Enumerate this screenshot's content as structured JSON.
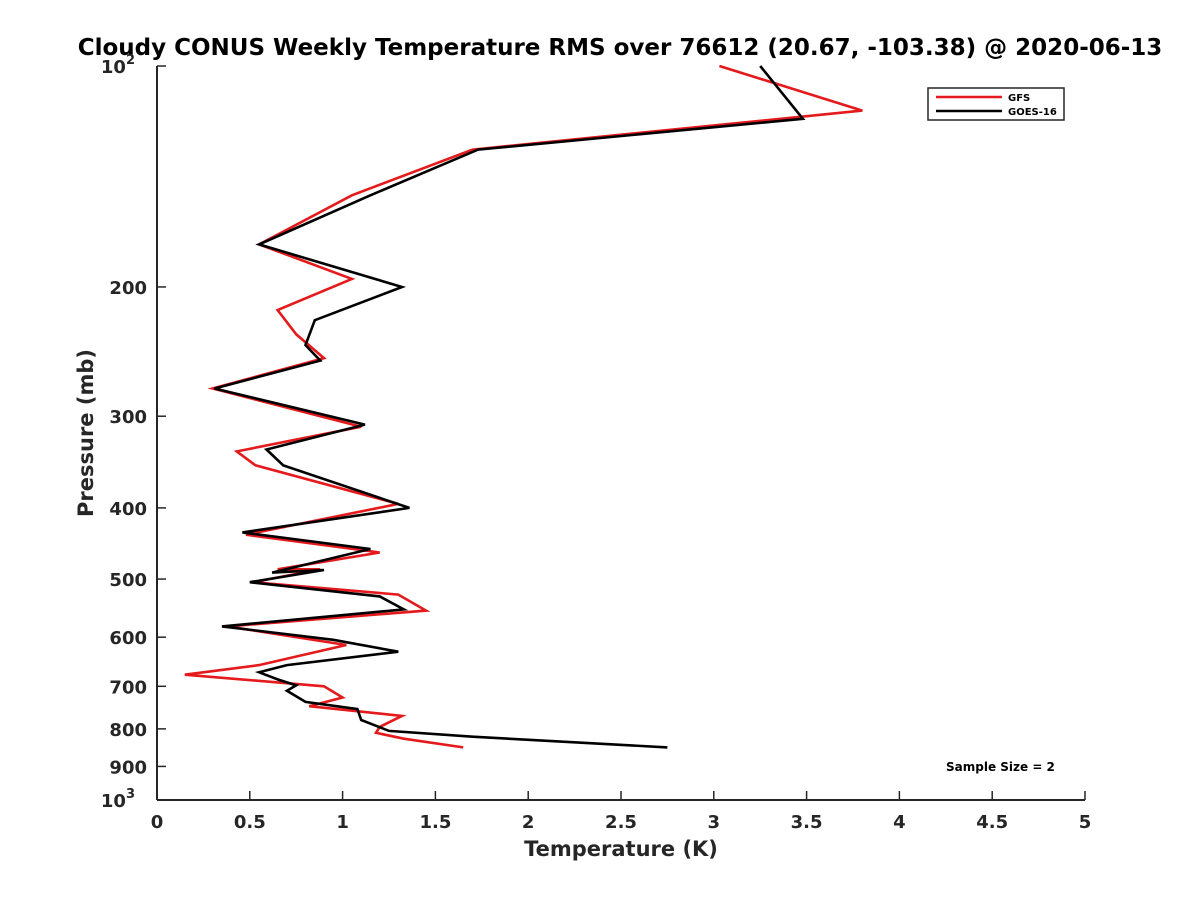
{
  "chart_data": {
    "type": "line",
    "title": "Cloudy CONUS Weekly Temperature RMS over 76612 (20.67, -103.38) @ 2020-06-13",
    "xlabel": "Temperature (K)",
    "ylabel": "Pressure (mb)",
    "xlim": [
      0,
      5
    ],
    "ylim": [
      100,
      1000
    ],
    "yscale": "log",
    "y_reversed": true,
    "x_ticks": [
      "0",
      "0.5",
      "1",
      "1.5",
      "2",
      "2.5",
      "3",
      "3.5",
      "4",
      "4.5",
      "5"
    ],
    "x_tick_values": [
      0,
      0.5,
      1,
      1.5,
      2,
      2.5,
      3,
      3.5,
      4,
      4.5,
      5
    ],
    "y_ticks": [
      {
        "value": 100,
        "base": "10",
        "exp": "2"
      },
      {
        "value": 200,
        "label": "200"
      },
      {
        "value": 300,
        "label": "300"
      },
      {
        "value": 400,
        "label": "400"
      },
      {
        "value": 500,
        "label": "500"
      },
      {
        "value": 600,
        "label": "600"
      },
      {
        "value": 700,
        "label": "700"
      },
      {
        "value": 800,
        "label": "800"
      },
      {
        "value": 900,
        "label": "900"
      },
      {
        "value": 1000,
        "base": "10",
        "exp": "3"
      }
    ],
    "legend_position": "top-right",
    "annotation": "Sample Size = 2",
    "series": [
      {
        "name": "GFS",
        "color": "#e41a1c",
        "points": [
          [
            3.03,
            100
          ],
          [
            3.8,
            115
          ],
          [
            1.7,
            130
          ],
          [
            1.05,
            150
          ],
          [
            0.55,
            175
          ],
          [
            1.05,
            195
          ],
          [
            0.65,
            215
          ],
          [
            0.75,
            232
          ],
          [
            0.9,
            250
          ],
          [
            0.3,
            275
          ],
          [
            1.1,
            310
          ],
          [
            0.43,
            335
          ],
          [
            0.53,
            350
          ],
          [
            1.3,
            395
          ],
          [
            0.48,
            435
          ],
          [
            1.2,
            460
          ],
          [
            0.65,
            485
          ],
          [
            0.88,
            485
          ],
          [
            0.52,
            505
          ],
          [
            1.3,
            525
          ],
          [
            1.45,
            552
          ],
          [
            0.38,
            580
          ],
          [
            1.02,
            615
          ],
          [
            0.55,
            655
          ],
          [
            0.15,
            675
          ],
          [
            0.9,
            700
          ],
          [
            1.0,
            725
          ],
          [
            0.82,
            745
          ],
          [
            1.32,
            768
          ],
          [
            1.2,
            795
          ],
          [
            1.18,
            810
          ],
          [
            1.33,
            825
          ],
          [
            1.65,
            848
          ]
        ]
      },
      {
        "name": "GOES-16",
        "color": "#000000",
        "points": [
          [
            3.25,
            100
          ],
          [
            3.48,
            118
          ],
          [
            1.73,
            130
          ],
          [
            1.15,
            150
          ],
          [
            0.55,
            175
          ],
          [
            1.32,
            200
          ],
          [
            0.85,
            222
          ],
          [
            0.8,
            240
          ],
          [
            0.88,
            252
          ],
          [
            0.31,
            275
          ],
          [
            1.12,
            308
          ],
          [
            0.59,
            333
          ],
          [
            0.68,
            350
          ],
          [
            1.36,
            400
          ],
          [
            0.46,
            432
          ],
          [
            1.15,
            455
          ],
          [
            0.62,
            490
          ],
          [
            0.9,
            486
          ],
          [
            0.5,
            505
          ],
          [
            1.2,
            528
          ],
          [
            1.33,
            550
          ],
          [
            0.35,
            580
          ],
          [
            0.95,
            605
          ],
          [
            1.3,
            628
          ],
          [
            0.7,
            655
          ],
          [
            0.55,
            670
          ],
          [
            0.65,
            685
          ],
          [
            0.75,
            698
          ],
          [
            0.7,
            710
          ],
          [
            0.8,
            735
          ],
          [
            1.08,
            752
          ],
          [
            1.1,
            778
          ],
          [
            1.25,
            805
          ],
          [
            1.7,
            820
          ],
          [
            2.75,
            848
          ]
        ]
      }
    ]
  }
}
